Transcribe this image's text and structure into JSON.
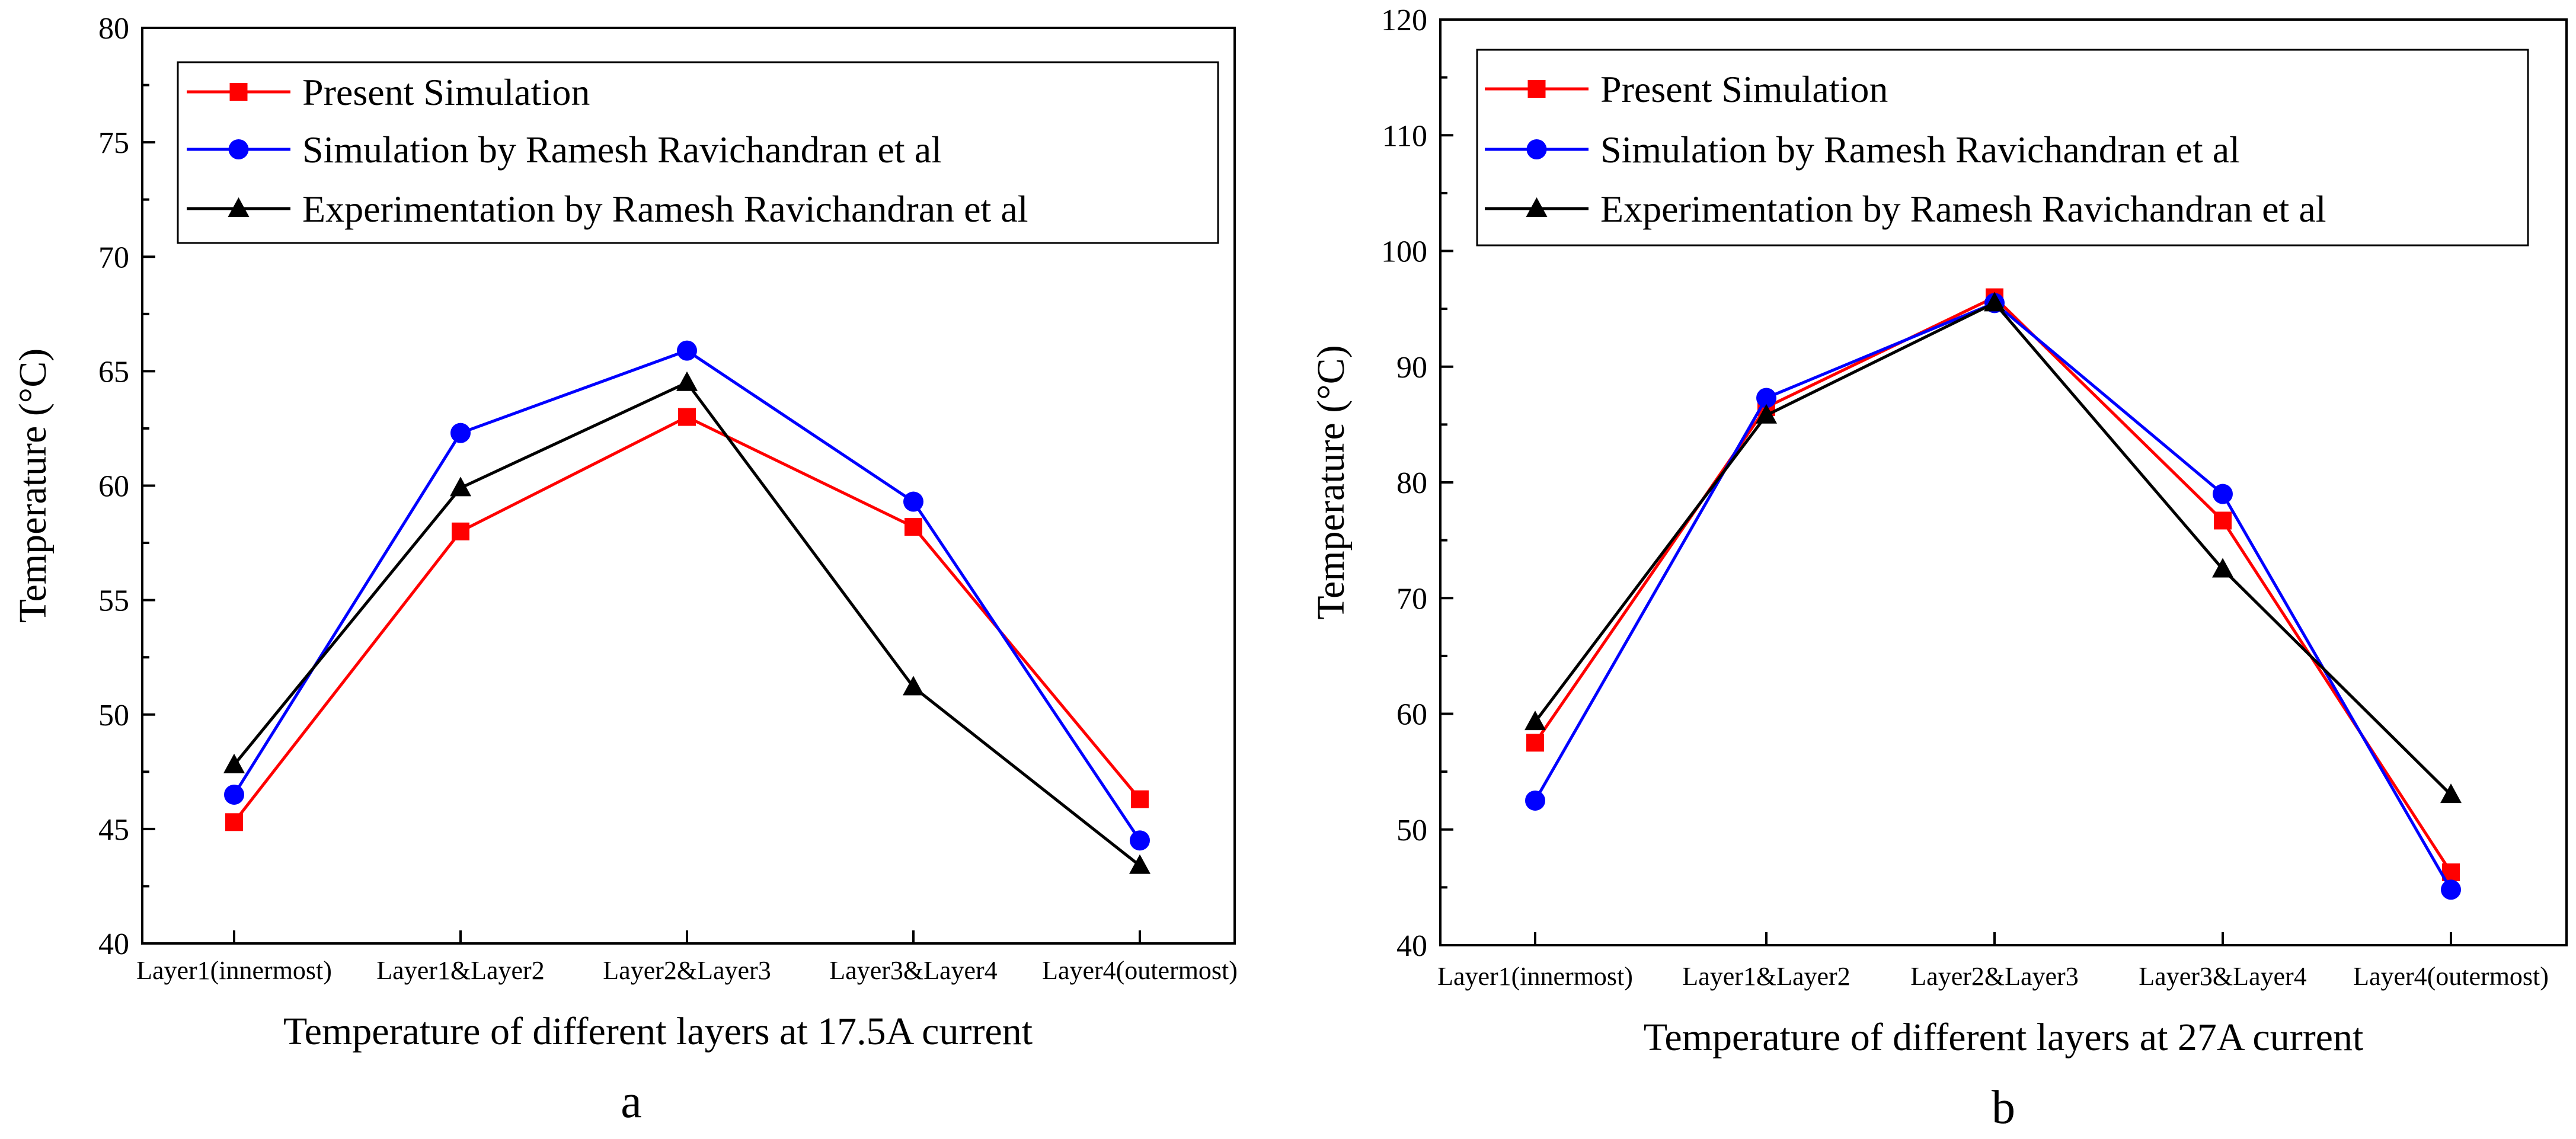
{
  "chart_data": [
    {
      "type": "line",
      "panel_label": "a",
      "categories": [
        "Layer1(innermost)",
        "Layer1&Layer2",
        "Layer2&Layer3",
        "Layer3&Layer4",
        "Layer4(outermost)"
      ],
      "xlabel": "Temperature of different layers at 17.5A current",
      "ylabel": "Temperature (°C)",
      "ylim": [
        40,
        80
      ],
      "yticks": [
        40,
        45,
        50,
        55,
        60,
        65,
        70,
        75,
        80
      ],
      "grid": false,
      "legend_position": "top-left",
      "series": [
        {
          "name": "Present Simulation",
          "color": "#ff0000",
          "marker": "square",
          "values": [
            45.3,
            58.0,
            63.0,
            58.2,
            46.3
          ]
        },
        {
          "name": "Simulation by Ramesh Ravichandran et al",
          "color": "#0000ff",
          "marker": "circle",
          "values": [
            46.5,
            62.3,
            65.9,
            59.3,
            44.5
          ]
        },
        {
          "name": "Experimentation by Ramesh Ravichandran et al",
          "color": "#000000",
          "marker": "triangle",
          "values": [
            47.8,
            59.9,
            64.5,
            51.2,
            43.4
          ]
        }
      ]
    },
    {
      "type": "line",
      "panel_label": "b",
      "categories": [
        "Layer1(innermost)",
        "Layer1&Layer2",
        "Layer2&Layer3",
        "Layer3&Layer4",
        "Layer4(outermost)"
      ],
      "xlabel": "Temperature of different layers at 27A current",
      "ylabel": "Temperature (°C)",
      "ylim": [
        40,
        120
      ],
      "yticks": [
        40,
        50,
        60,
        70,
        80,
        90,
        100,
        110,
        120
      ],
      "grid": false,
      "legend_position": "top-left",
      "series": [
        {
          "name": "Present Simulation",
          "color": "#ff0000",
          "marker": "square",
          "values": [
            57.5,
            86.5,
            96.0,
            76.7,
            46.3
          ]
        },
        {
          "name": "Simulation by Ramesh Ravichandran et al",
          "color": "#0000ff",
          "marker": "circle",
          "values": [
            52.5,
            87.3,
            95.5,
            79.0,
            44.8
          ]
        },
        {
          "name": "Experimentation by Ramesh Ravichandran et al",
          "color": "#000000",
          "marker": "triangle",
          "values": [
            59.3,
            85.8,
            95.5,
            72.5,
            53.0
          ]
        }
      ]
    }
  ]
}
